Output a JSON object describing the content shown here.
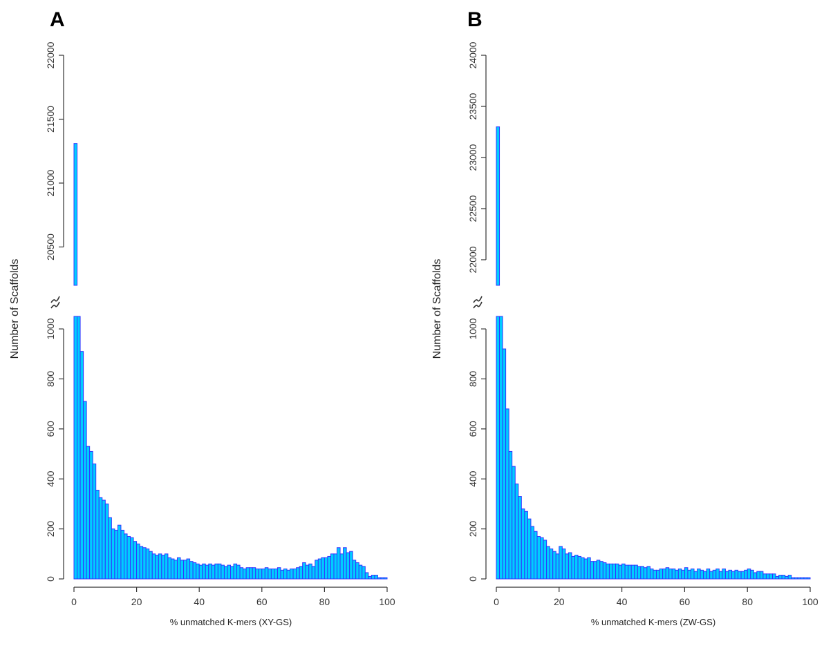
{
  "chart_data": [
    {
      "panel": "A",
      "type": "bar",
      "xlabel": "% unmatched K-mers (XY-GS)",
      "ylabel": "Number of Scaffolds",
      "xlim": [
        0,
        100
      ],
      "xticks": [
        0,
        20,
        40,
        60,
        80,
        100
      ],
      "y_break": true,
      "ylim_lower": [
        0,
        1050
      ],
      "yticks_lower": [
        0,
        200,
        400,
        600,
        800,
        1000
      ],
      "ylim_upper": [
        20200,
        22000
      ],
      "yticks_upper": [
        20500,
        21000,
        21500,
        22000
      ],
      "bar_fill": "#00ccff",
      "bar_stroke": "#3333ff",
      "bin_width": 1,
      "x": [
        0,
        1,
        2,
        3,
        4,
        5,
        6,
        7,
        8,
        9,
        10,
        11,
        12,
        13,
        14,
        15,
        16,
        17,
        18,
        19,
        20,
        21,
        22,
        23,
        24,
        25,
        26,
        27,
        28,
        29,
        30,
        31,
        32,
        33,
        34,
        35,
        36,
        37,
        38,
        39,
        40,
        41,
        42,
        43,
        44,
        45,
        46,
        47,
        48,
        49,
        50,
        51,
        52,
        53,
        54,
        55,
        56,
        57,
        58,
        59,
        60,
        61,
        62,
        63,
        64,
        65,
        66,
        67,
        68,
        69,
        70,
        71,
        72,
        73,
        74,
        75,
        76,
        77,
        78,
        79,
        80,
        81,
        82,
        83,
        84,
        85,
        86,
        87,
        88,
        89,
        90,
        91,
        92,
        93,
        94,
        95,
        96,
        97,
        98,
        99
      ],
      "values": [
        21310,
        1050,
        910,
        710,
        530,
        510,
        460,
        355,
        325,
        315,
        300,
        245,
        200,
        195,
        215,
        195,
        180,
        170,
        165,
        150,
        140,
        130,
        125,
        120,
        110,
        100,
        95,
        100,
        95,
        100,
        85,
        80,
        75,
        85,
        75,
        75,
        80,
        70,
        65,
        60,
        55,
        60,
        55,
        60,
        55,
        60,
        60,
        55,
        50,
        55,
        50,
        60,
        55,
        45,
        40,
        45,
        45,
        45,
        40,
        40,
        40,
        45,
        40,
        40,
        40,
        45,
        35,
        40,
        35,
        40,
        40,
        45,
        50,
        65,
        55,
        60,
        50,
        75,
        80,
        85,
        85,
        90,
        100,
        100,
        125,
        100,
        125,
        105,
        110,
        75,
        65,
        55,
        50,
        25,
        10,
        15,
        15,
        5,
        5,
        5
      ]
    },
    {
      "panel": "B",
      "type": "bar",
      "xlabel": "% unmatched K-mers (ZW-GS)",
      "ylabel": "Number of Scaffolds",
      "xlim": [
        0,
        100
      ],
      "xticks": [
        0,
        20,
        40,
        60,
        80,
        100
      ],
      "y_break": true,
      "ylim_lower": [
        0,
        1050
      ],
      "yticks_lower": [
        0,
        200,
        400,
        600,
        800,
        1000
      ],
      "ylim_upper": [
        21750,
        24000
      ],
      "yticks_upper": [
        22000,
        22500,
        23000,
        23500,
        24000
      ],
      "bar_fill": "#00ccff",
      "bar_stroke": "#3333ff",
      "bin_width": 1,
      "x": [
        0,
        1,
        2,
        3,
        4,
        5,
        6,
        7,
        8,
        9,
        10,
        11,
        12,
        13,
        14,
        15,
        16,
        17,
        18,
        19,
        20,
        21,
        22,
        23,
        24,
        25,
        26,
        27,
        28,
        29,
        30,
        31,
        32,
        33,
        34,
        35,
        36,
        37,
        38,
        39,
        40,
        41,
        42,
        43,
        44,
        45,
        46,
        47,
        48,
        49,
        50,
        51,
        52,
        53,
        54,
        55,
        56,
        57,
        58,
        59,
        60,
        61,
        62,
        63,
        64,
        65,
        66,
        67,
        68,
        69,
        70,
        71,
        72,
        73,
        74,
        75,
        76,
        77,
        78,
        79,
        80,
        81,
        82,
        83,
        84,
        85,
        86,
        87,
        88,
        89,
        90,
        91,
        92,
        93,
        94,
        95,
        96,
        97,
        98,
        99
      ],
      "values": [
        23300,
        1050,
        920,
        680,
        510,
        450,
        380,
        330,
        280,
        270,
        240,
        210,
        190,
        170,
        165,
        155,
        130,
        120,
        110,
        100,
        130,
        120,
        100,
        105,
        90,
        95,
        90,
        85,
        80,
        85,
        70,
        70,
        75,
        70,
        65,
        60,
        60,
        60,
        60,
        55,
        60,
        55,
        55,
        55,
        55,
        50,
        50,
        45,
        50,
        40,
        35,
        35,
        40,
        40,
        45,
        40,
        40,
        35,
        40,
        35,
        45,
        35,
        40,
        30,
        40,
        35,
        30,
        40,
        30,
        35,
        40,
        30,
        40,
        30,
        35,
        30,
        35,
        30,
        30,
        35,
        40,
        35,
        25,
        30,
        30,
        20,
        20,
        20,
        20,
        10,
        15,
        15,
        10,
        15,
        5,
        5,
        5,
        5,
        5,
        5
      ]
    }
  ]
}
